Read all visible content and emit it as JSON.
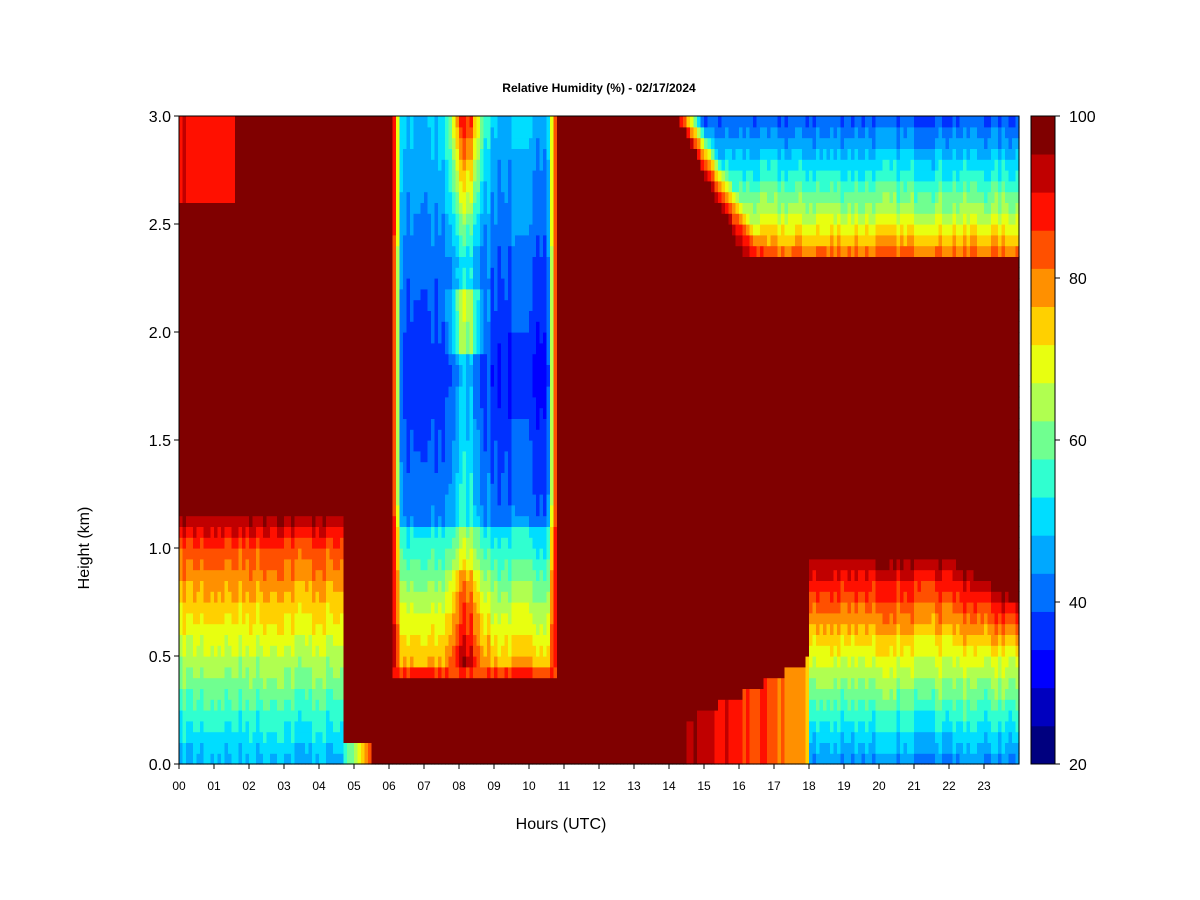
{
  "chart_data": {
    "type": "heatmap",
    "title": "Relative Humidity (%) - 02/17/2024",
    "xlabel": "Hours (UTC)",
    "ylabel": "Height (km)",
    "xlim": [
      0,
      24
    ],
    "ylim": [
      0,
      3.0
    ],
    "x_ticks": [
      "00",
      "01",
      "02",
      "03",
      "04",
      "05",
      "06",
      "07",
      "08",
      "09",
      "10",
      "11",
      "12",
      "13",
      "14",
      "15",
      "16",
      "17",
      "18",
      "19",
      "20",
      "21",
      "22",
      "23"
    ],
    "y_ticks": [
      "0.0",
      "0.5",
      "1.0",
      "1.5",
      "2.0",
      "2.5",
      "3.0"
    ],
    "grid": false,
    "colorbar": {
      "range": [
        20,
        100
      ],
      "step": 5,
      "tick_labels": [
        "20",
        "40",
        "60",
        "80",
        "100"
      ],
      "colors": [
        "#00007F",
        "#0000BF",
        "#0000FF",
        "#0030FF",
        "#0070FF",
        "#00A8FF",
        "#00DDFF",
        "#30FFD0",
        "#70FF90",
        "#B0FF50",
        "#E8FF10",
        "#FFD000",
        "#FF9000",
        "#FF5000",
        "#FF1000",
        "#C00000",
        "#800000"
      ]
    },
    "fields": {
      "note_units": "relative humidity in percent; hours in UTC; height in km",
      "low_layer_humidity_00_to_05": {
        "surface": 48,
        "at_0_5km": 68,
        "at_1_0km": 88,
        "top_of_moist_layer_km": 1.15
      },
      "dry_band_06_to_11": {
        "start_h": 6.1,
        "end_h": 10.8,
        "base_km": 0.45,
        "driest_value": 35,
        "driest_height_km": 1.8,
        "moist_core_h": 8.2,
        "moist_core_height_km": 2.7
      },
      "upper_dry_air_14_to_24": {
        "onset_h": 14.2,
        "base_km": 2.35,
        "top_value": 40
      },
      "low_layer_humidity_18_to_24": {
        "surface": 45,
        "at_0_5km": 72,
        "top_of_moist_layer_km": 0.95
      },
      "saturated_background": 100
    }
  }
}
